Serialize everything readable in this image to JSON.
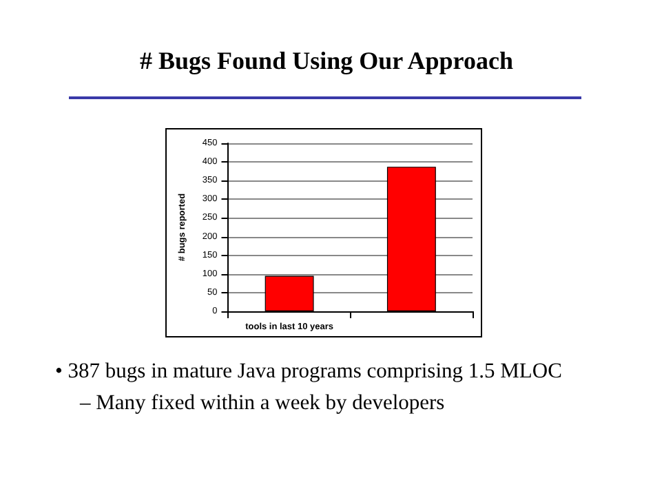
{
  "chart_data": {
    "type": "bar",
    "title": "# Bugs Found Using Our Approach",
    "ylabel": "# bugs reported",
    "categories": [
      "tools in last 10 years",
      null
    ],
    "values": [
      95,
      387
    ],
    "color": "#ff0000",
    "ylim": [
      0,
      450
    ],
    "yticks": [
      0,
      50,
      100,
      150,
      200,
      250,
      300,
      350,
      400,
      450
    ],
    "grid": "y",
    "annotations": [
      "• 387 bugs in mature Java programs comprising 1.5 MLOC",
      "– Many fixed within a week by developers"
    ]
  }
}
